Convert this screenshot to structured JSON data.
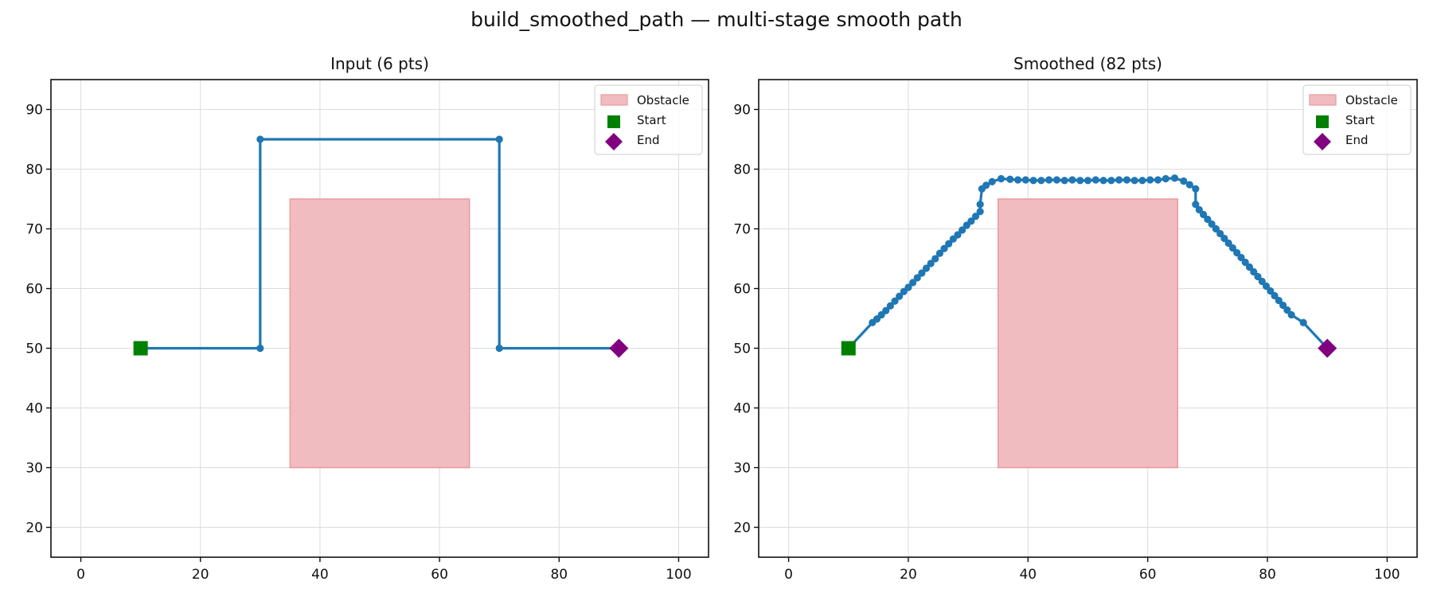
{
  "figure": {
    "title": "build_smoothed_path — multi-stage smooth path"
  },
  "chart_data": [
    {
      "type": "line",
      "title": "Input (6 pts)",
      "xlabel": "",
      "ylabel": "",
      "xlim": [
        -5,
        105
      ],
      "ylim": [
        15,
        95
      ],
      "xticks": [
        0,
        20,
        40,
        60,
        80,
        100
      ],
      "yticks": [
        20,
        30,
        40,
        50,
        60,
        70,
        80,
        90
      ],
      "grid": true,
      "legend_position": "top-right",
      "obstacle": {
        "x": [
          35,
          65
        ],
        "y": [
          30,
          75
        ],
        "color": "#f0bcbf"
      },
      "series": [
        {
          "name": "",
          "color": "#1f77b4",
          "x": [
            10,
            30,
            30,
            70,
            70,
            90
          ],
          "y": [
            50,
            50,
            85,
            85,
            50,
            50
          ]
        }
      ],
      "start": {
        "x": 10,
        "y": 50,
        "color": "#008000"
      },
      "end": {
        "x": 90,
        "y": 50,
        "color": "#800080"
      },
      "legend": [
        "Obstacle",
        "Start",
        "End"
      ]
    },
    {
      "type": "line",
      "title": "Smoothed (82 pts)",
      "xlabel": "",
      "ylabel": "",
      "xlim": [
        -5,
        105
      ],
      "ylim": [
        15,
        95
      ],
      "xticks": [
        0,
        20,
        40,
        60,
        80,
        100
      ],
      "yticks": [
        20,
        30,
        40,
        50,
        60,
        70,
        80,
        90
      ],
      "grid": true,
      "legend_position": "top-right",
      "obstacle": {
        "x": [
          35,
          65
        ],
        "y": [
          30,
          75
        ],
        "color": "#f0bcbf"
      },
      "series": [
        {
          "name": "",
          "color": "#1f77b4",
          "x": [
            10,
            14,
            14.75,
            15.5,
            16.25,
            17,
            17.75,
            18.5,
            19.25,
            20,
            20.75,
            21.5,
            22.25,
            23,
            23.75,
            24.5,
            25.25,
            26,
            26.75,
            27.5,
            28.25,
            29,
            29.75,
            30.5,
            31.25,
            32,
            32,
            32.3,
            33,
            34,
            35.5,
            37,
            38.3,
            39.6,
            40.9,
            42.2,
            43.5,
            44.8,
            46.1,
            47.4,
            48.7,
            50,
            51.3,
            52.6,
            53.9,
            55.2,
            56.5,
            57.8,
            59.1,
            60.4,
            61.7,
            63,
            64.5,
            66,
            67,
            68,
            68,
            68.6,
            69.3,
            70,
            70.7,
            71.4,
            72.1,
            72.8,
            73.5,
            74.2,
            74.9,
            75.6,
            76.3,
            77,
            77.7,
            78.4,
            79.1,
            79.8,
            80.5,
            81.2,
            81.9,
            82.6,
            83.3,
            84,
            86,
            90
          ],
          "y": [
            50,
            54.3,
            54.9,
            55.6,
            56.3,
            57.1,
            57.9,
            58.7,
            59.5,
            60.2,
            61,
            61.8,
            62.6,
            63.4,
            64.2,
            65,
            65.9,
            66.7,
            67.5,
            68.3,
            69,
            69.8,
            70.6,
            71.3,
            72.1,
            72.9,
            74.1,
            76.7,
            77.3,
            77.9,
            78.4,
            78.3,
            78.2,
            78.2,
            78.1,
            78.1,
            78.2,
            78.2,
            78.1,
            78.2,
            78.1,
            78.1,
            78.2,
            78.1,
            78.1,
            78.2,
            78.2,
            78.1,
            78.1,
            78.2,
            78.2,
            78.4,
            78.5,
            78,
            77.4,
            76.7,
            74.1,
            73.2,
            72.4,
            71.6,
            70.8,
            70,
            69.2,
            68.4,
            67.6,
            66.8,
            66,
            65.2,
            64.4,
            63.6,
            62.8,
            62,
            61.2,
            60.4,
            59.6,
            58.8,
            58,
            57.2,
            56.4,
            55.6,
            54.3,
            50
          ]
        }
      ],
      "start": {
        "x": 10,
        "y": 50,
        "color": "#008000"
      },
      "end": {
        "x": 90,
        "y": 50,
        "color": "#800080"
      },
      "legend": [
        "Obstacle",
        "Start",
        "End"
      ]
    }
  ]
}
